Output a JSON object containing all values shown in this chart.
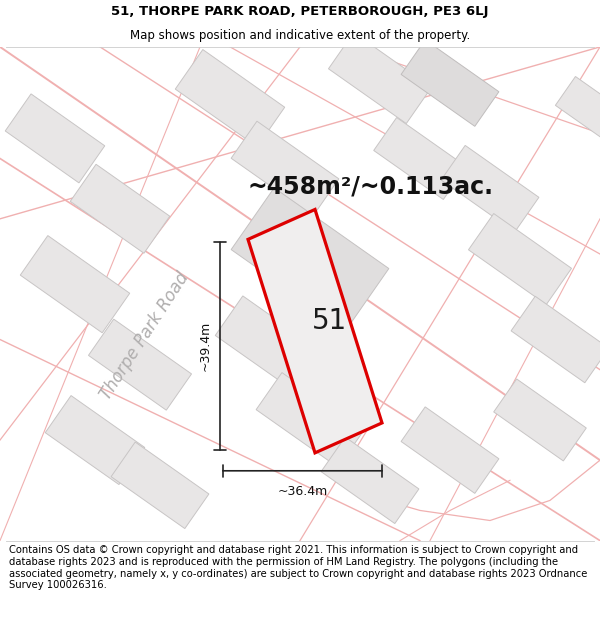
{
  "title_line1": "51, THORPE PARK ROAD, PETERBOROUGH, PE3 6LJ",
  "title_line2": "Map shows position and indicative extent of the property.",
  "area_text": "~458m²/~0.113ac.",
  "plot_number": "51",
  "dim_vertical": "~39.4m",
  "dim_horizontal": "~36.4m",
  "road_label": "Thorpe Park Road",
  "footer_text": "Contains OS data © Crown copyright and database right 2021. This information is subject to Crown copyright and database rights 2023 and is reproduced with the permission of HM Land Registry. The polygons (including the associated geometry, namely x, y co-ordinates) are subject to Crown copyright and database rights 2023 Ordnance Survey 100026316.",
  "bg_color": "#ffffff",
  "map_bg": "#faf9f9",
  "building_color": "#e8e6e6",
  "building_edge": "#c8c5c5",
  "road_line_color": "#f0b0b0",
  "plot_outline_color": "#dd0000",
  "plot_fill_color": "#f0eeee",
  "dim_line_color": "#222222",
  "title_fontsize": 9.5,
  "subtitle_fontsize": 8.5,
  "area_fontsize": 17,
  "plot_label_fontsize": 20,
  "dim_fontsize": 9,
  "road_label_fontsize": 12,
  "footer_fontsize": 7.2
}
